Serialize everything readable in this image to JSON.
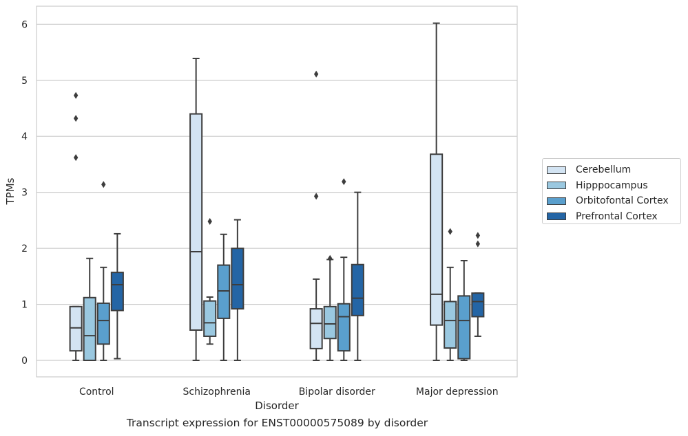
{
  "caption": "Transcript expression for ENST00000575089 by disorder",
  "chart_data": {
    "type": "box",
    "xlabel": "Disorder",
    "ylabel": "TPMs",
    "ylim": [
      -0.3,
      6.35
    ],
    "yticks": [
      0,
      1,
      2,
      3,
      4,
      5,
      6
    ],
    "grid": true,
    "legend_position": "right",
    "categories": [
      "Control",
      "Schizophrenia",
      "Bipolar disorder",
      "Major depression"
    ],
    "series": [
      {
        "name": "Cerebellum",
        "color": "#d3e4f3",
        "boxes": [
          {
            "whislo": 0.0,
            "q1": 0.17,
            "med": 0.58,
            "q3": 0.96,
            "whishi": 0.96,
            "fliers": [
              3.62,
              4.32,
              4.73
            ]
          },
          {
            "whislo": 0.0,
            "q1": 0.54,
            "med": 1.94,
            "q3": 4.4,
            "whishi": 5.39,
            "fliers": []
          },
          {
            "whislo": 0.0,
            "q1": 0.21,
            "med": 0.66,
            "q3": 0.92,
            "whishi": 1.45,
            "fliers": [
              2.93,
              5.11
            ]
          },
          {
            "whislo": 0.0,
            "q1": 0.63,
            "med": 1.18,
            "q3": 3.68,
            "whishi": 6.02,
            "fliers": []
          }
        ]
      },
      {
        "name": "Hipppocampus",
        "color": "#9ac8e0",
        "boxes": [
          {
            "whislo": 0.0,
            "q1": 0.0,
            "med": 0.44,
            "q3": 1.12,
            "whishi": 1.82,
            "fliers": []
          },
          {
            "whislo": 0.29,
            "q1": 0.43,
            "med": 0.67,
            "q3": 1.06,
            "whishi": 1.13,
            "fliers": [
              2.48
            ]
          },
          {
            "whislo": 0.0,
            "q1": 0.39,
            "med": 0.65,
            "q3": 0.96,
            "whishi": 1.8,
            "fliers": [
              1.82
            ]
          },
          {
            "whislo": 0.0,
            "q1": 0.22,
            "med": 0.71,
            "q3": 1.05,
            "whishi": 1.66,
            "fliers": [
              2.3
            ]
          }
        ]
      },
      {
        "name": "Orbitofontal Cortex",
        "color": "#5a9fcd",
        "boxes": [
          {
            "whislo": 0.0,
            "q1": 0.29,
            "med": 0.71,
            "q3": 1.02,
            "whishi": 1.66,
            "fliers": [
              3.14
            ]
          },
          {
            "whislo": 0.0,
            "q1": 0.75,
            "med": 1.24,
            "q3": 1.7,
            "whishi": 2.25,
            "fliers": []
          },
          {
            "whislo": 0.0,
            "q1": 0.17,
            "med": 0.78,
            "q3": 1.01,
            "whishi": 1.84,
            "fliers": [
              3.19
            ]
          },
          {
            "whislo": 0.0,
            "q1": 0.03,
            "med": 0.71,
            "q3": 1.15,
            "whishi": 1.78,
            "fliers": []
          }
        ]
      },
      {
        "name": "Prefrontal Cortex",
        "color": "#2465a5",
        "boxes": [
          {
            "whislo": 0.03,
            "q1": 0.89,
            "med": 1.35,
            "q3": 1.57,
            "whishi": 2.26,
            "fliers": []
          },
          {
            "whislo": 0.0,
            "q1": 0.92,
            "med": 1.35,
            "q3": 2.0,
            "whishi": 2.51,
            "fliers": []
          },
          {
            "whislo": 0.0,
            "q1": 0.8,
            "med": 1.11,
            "q3": 1.71,
            "whishi": 3.0,
            "fliers": []
          },
          {
            "whislo": 0.43,
            "q1": 0.78,
            "med": 1.05,
            "q3": 1.2,
            "whishi": 1.2,
            "fliers": [
              2.08,
              2.23
            ]
          }
        ]
      }
    ]
  }
}
